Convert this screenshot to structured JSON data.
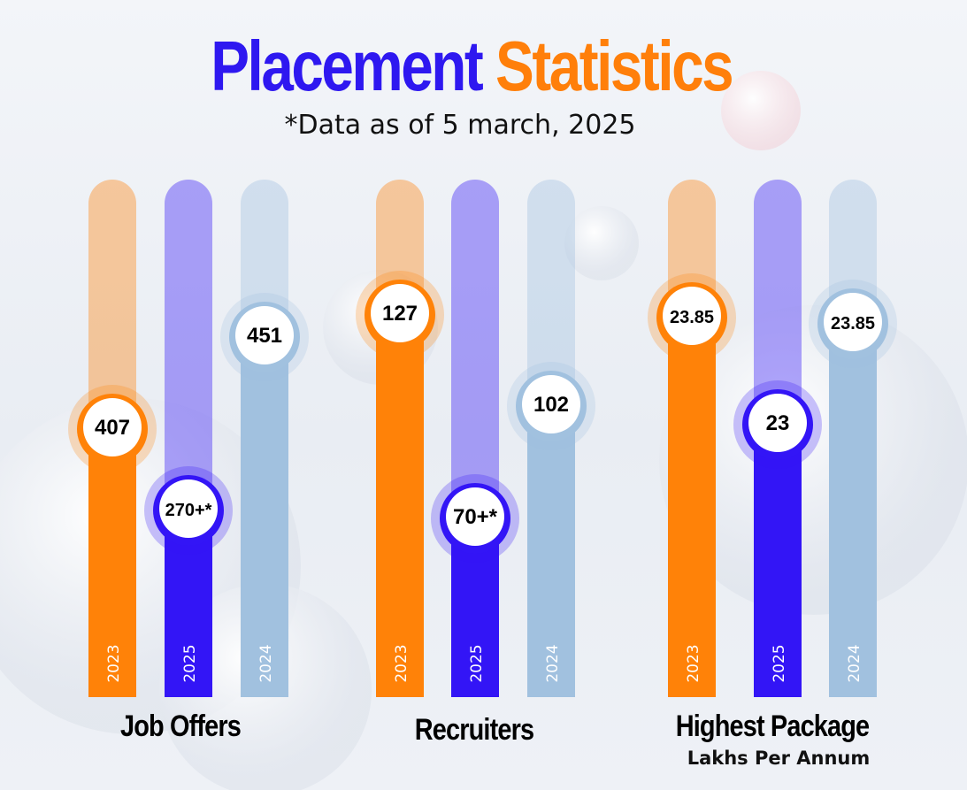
{
  "header": {
    "title_part1": "Placement",
    "title_part2": "Statistics",
    "subtitle": "*Data as of 5 march, 2025"
  },
  "colors": {
    "2023": "#ff8208",
    "2025": "#3315f6",
    "2024": "#a1c1df",
    "title_blue": "#2e18f0",
    "title_orange": "#ff7f0a"
  },
  "chart_data": [
    {
      "type": "bar",
      "title": "Job Offers",
      "categories": [
        "2023",
        "2025",
        "2024"
      ],
      "values": [
        407,
        270,
        451
      ],
      "value_labels": [
        "407",
        "270+*",
        "451"
      ]
    },
    {
      "type": "bar",
      "title": "Recruiters",
      "categories": [
        "2023",
        "2025",
        "2024"
      ],
      "values": [
        127,
        70,
        102
      ],
      "value_labels": [
        "127",
        "70+*",
        "102"
      ]
    },
    {
      "type": "bar",
      "title": "Highest Package",
      "subtitle": "Lakhs Per Annum",
      "categories": [
        "2023",
        "2025",
        "2024"
      ],
      "values": [
        23.85,
        23,
        23.85
      ],
      "value_labels": [
        "23.85",
        "23",
        "23.85"
      ]
    }
  ]
}
